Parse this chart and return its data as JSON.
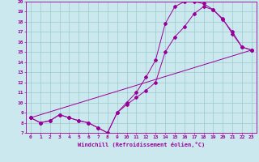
{
  "xlabel": "Windchill (Refroidissement éolien,°C)",
  "bg_color": "#cce8ef",
  "line_color": "#990099",
  "grid_color": "#99cccc",
  "xlim": [
    -0.5,
    23.5
  ],
  "ylim": [
    7,
    20
  ],
  "xticks": [
    0,
    1,
    2,
    3,
    4,
    5,
    6,
    7,
    8,
    9,
    10,
    11,
    12,
    13,
    14,
    15,
    16,
    17,
    18,
    19,
    20,
    21,
    22,
    23
  ],
  "yticks": [
    7,
    8,
    9,
    10,
    11,
    12,
    13,
    14,
    15,
    16,
    17,
    18,
    19,
    20
  ],
  "curve1_x": [
    0,
    1,
    2,
    3,
    4,
    5,
    6,
    7,
    8,
    9,
    10,
    11,
    12,
    13,
    14,
    15,
    16,
    17,
    18,
    19,
    20,
    21,
    22,
    23
  ],
  "curve1_y": [
    8.5,
    8.0,
    8.2,
    8.8,
    8.5,
    8.2,
    8.0,
    7.5,
    7.0,
    9.0,
    10.0,
    11.0,
    12.5,
    14.2,
    17.8,
    19.5,
    20.0,
    20.0,
    19.8,
    19.2,
    18.2,
    17.0,
    15.5,
    15.2
  ],
  "curve2_x": [
    0,
    1,
    2,
    3,
    4,
    5,
    6,
    7,
    8,
    9,
    10,
    11,
    12,
    13,
    14,
    15,
    16,
    17,
    18,
    19,
    20,
    21,
    22,
    23
  ],
  "curve2_y": [
    8.5,
    8.0,
    8.2,
    8.8,
    8.5,
    8.2,
    8.0,
    7.5,
    7.0,
    9.0,
    9.8,
    10.5,
    11.2,
    12.0,
    15.0,
    16.5,
    17.5,
    18.8,
    19.5,
    19.2,
    18.3,
    16.8,
    15.5,
    15.2
  ],
  "curve3_x": [
    0,
    23
  ],
  "curve3_y": [
    8.5,
    15.2
  ]
}
